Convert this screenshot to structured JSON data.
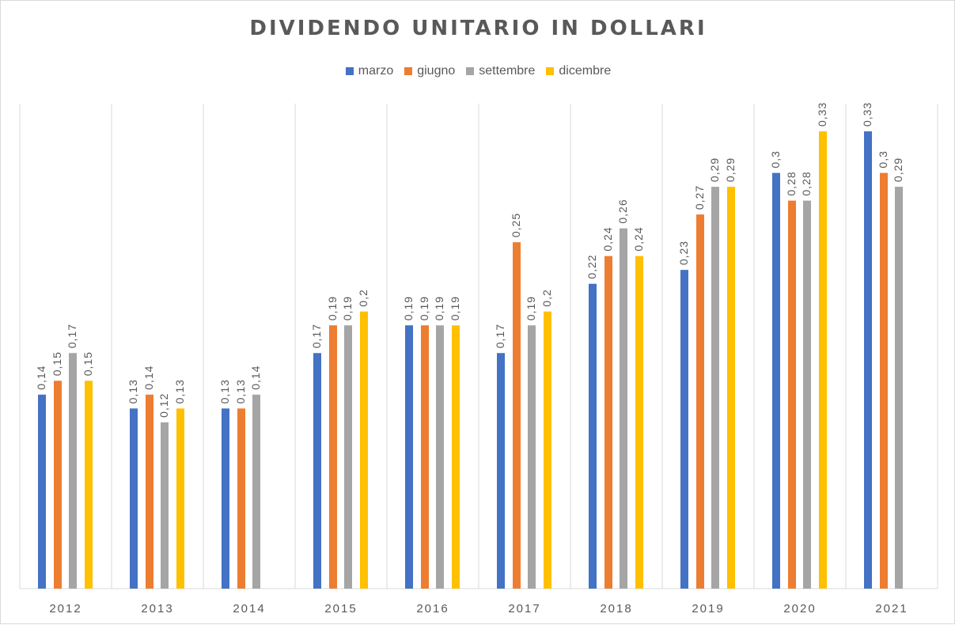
{
  "chart_data": {
    "type": "bar",
    "title": "DIVIDENDO UNITARIO IN DOLLARI",
    "categories": [
      "2012",
      "2013",
      "2014",
      "2015",
      "2016",
      "2017",
      "2018",
      "2019",
      "2020",
      "2021"
    ],
    "ylim": [
      0,
      0.35
    ],
    "grid": "vertical category separators",
    "legend": "top",
    "series": [
      {
        "name": "marzo",
        "color": "#4472c4",
        "values": [
          0.14,
          0.13,
          0.13,
          0.17,
          0.19,
          0.17,
          0.22,
          0.23,
          0.3,
          0.33
        ],
        "labels": [
          "0,14",
          "0,13",
          "0,13",
          "0,17",
          "0,19",
          "0,17",
          "0,22",
          "0,23",
          "0,3",
          "0,33"
        ]
      },
      {
        "name": "giugno",
        "color": "#ed7d31",
        "values": [
          0.15,
          0.14,
          0.13,
          0.19,
          0.19,
          0.25,
          0.24,
          0.27,
          0.28,
          0.3
        ],
        "labels": [
          "0,15",
          "0,14",
          "0,13",
          "0,19",
          "0,19",
          "0,25",
          "0,24",
          "0,27",
          "0,28",
          "0,3"
        ]
      },
      {
        "name": "settembre",
        "color": "#a5a5a5",
        "values": [
          0.17,
          0.12,
          0.14,
          0.19,
          0.19,
          0.19,
          0.26,
          0.29,
          0.28,
          0.29
        ],
        "labels": [
          "0,17",
          "0,12",
          "0,14",
          "0,19",
          "0,19",
          "0,19",
          "0,26",
          "0,29",
          "0,28",
          "0,29"
        ]
      },
      {
        "name": "dicembre",
        "color": "#ffc000",
        "values": [
          0.15,
          0.13,
          null,
          0.2,
          0.19,
          0.2,
          0.24,
          0.29,
          0.33,
          null
        ],
        "labels": [
          "0,15",
          "0,13",
          null,
          "0,2",
          "0,19",
          "0,2",
          "0,24",
          "0,29",
          "0,33",
          null
        ]
      }
    ]
  }
}
